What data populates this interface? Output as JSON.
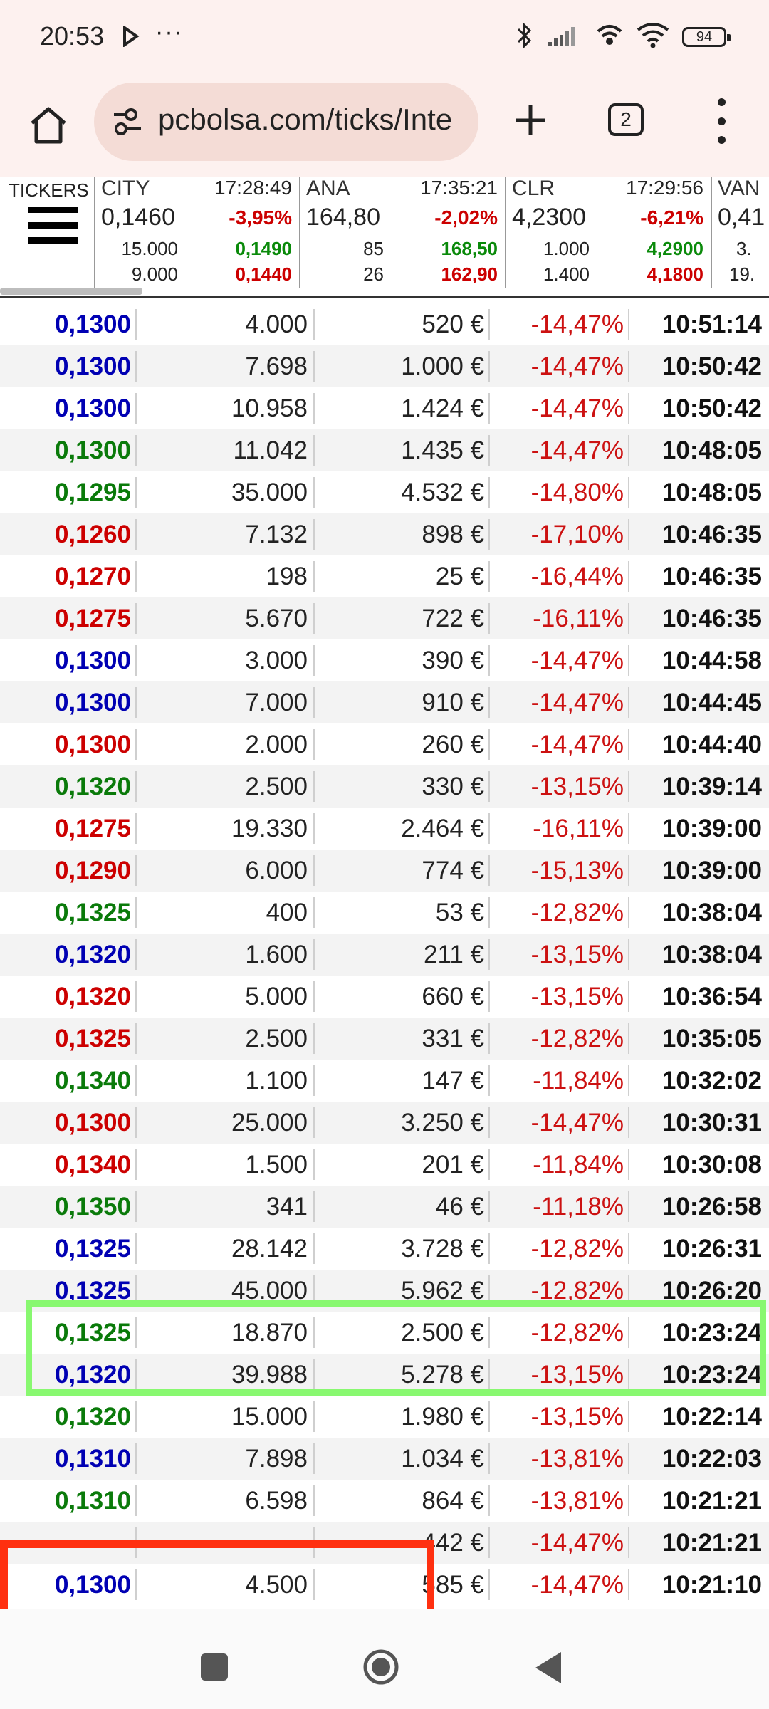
{
  "status_bar": {
    "time": "20:53",
    "more": "···",
    "battery": "94"
  },
  "browser": {
    "url": "pcbolsa.com/ticks/Inte",
    "tab_count": "2"
  },
  "tickers": {
    "menu_label": "TICKERS",
    "items": [
      {
        "symbol": "CITY",
        "time": "17:28:49",
        "price": "0,1460",
        "change": "-3,95%",
        "bid_vol": "15.000",
        "high": "0,1490",
        "ask_vol": "9.000",
        "low": "0,1440"
      },
      {
        "symbol": "ANA",
        "time": "17:35:21",
        "price": "164,80",
        "change": "-2,02%",
        "bid_vol": "85",
        "high": "168,50",
        "ask_vol": "26",
        "low": "162,90"
      },
      {
        "symbol": "CLR",
        "time": "17:29:56",
        "price": "4,2300",
        "change": "-6,21%",
        "bid_vol": "1.000",
        "high": "4,2900",
        "ask_vol": "1.400",
        "low": "4,1800"
      },
      {
        "symbol": "VAN",
        "time": "",
        "price": "0,41",
        "change": "",
        "bid_vol": "3.",
        "high": "",
        "ask_vol": "19.",
        "low": ""
      }
    ]
  },
  "trades": [
    {
      "price": "0,1300",
      "color": "blue",
      "shares": "4.000",
      "amount": "520 €",
      "pct": "-14,47%",
      "time": "10:51:14"
    },
    {
      "price": "0,1300",
      "color": "blue",
      "shares": "7.698",
      "amount": "1.000 €",
      "pct": "-14,47%",
      "time": "10:50:42"
    },
    {
      "price": "0,1300",
      "color": "blue",
      "shares": "10.958",
      "amount": "1.424 €",
      "pct": "-14,47%",
      "time": "10:50:42"
    },
    {
      "price": "0,1300",
      "color": "green",
      "shares": "11.042",
      "amount": "1.435 €",
      "pct": "-14,47%",
      "time": "10:48:05"
    },
    {
      "price": "0,1295",
      "color": "green",
      "shares": "35.000",
      "amount": "4.532 €",
      "pct": "-14,80%",
      "time": "10:48:05"
    },
    {
      "price": "0,1260",
      "color": "red",
      "shares": "7.132",
      "amount": "898 €",
      "pct": "-17,10%",
      "time": "10:46:35"
    },
    {
      "price": "0,1270",
      "color": "red",
      "shares": "198",
      "amount": "25 €",
      "pct": "-16,44%",
      "time": "10:46:35"
    },
    {
      "price": "0,1275",
      "color": "red",
      "shares": "5.670",
      "amount": "722 €",
      "pct": "-16,11%",
      "time": "10:46:35"
    },
    {
      "price": "0,1300",
      "color": "blue",
      "shares": "3.000",
      "amount": "390 €",
      "pct": "-14,47%",
      "time": "10:44:58"
    },
    {
      "price": "0,1300",
      "color": "blue",
      "shares": "7.000",
      "amount": "910 €",
      "pct": "-14,47%",
      "time": "10:44:45"
    },
    {
      "price": "0,1300",
      "color": "red",
      "shares": "2.000",
      "amount": "260 €",
      "pct": "-14,47%",
      "time": "10:44:40"
    },
    {
      "price": "0,1320",
      "color": "green",
      "shares": "2.500",
      "amount": "330 €",
      "pct": "-13,15%",
      "time": "10:39:14"
    },
    {
      "price": "0,1275",
      "color": "red",
      "shares": "19.330",
      "amount": "2.464 €",
      "pct": "-16,11%",
      "time": "10:39:00"
    },
    {
      "price": "0,1290",
      "color": "red",
      "shares": "6.000",
      "amount": "774 €",
      "pct": "-15,13%",
      "time": "10:39:00"
    },
    {
      "price": "0,1325",
      "color": "green",
      "shares": "400",
      "amount": "53 €",
      "pct": "-12,82%",
      "time": "10:38:04"
    },
    {
      "price": "0,1320",
      "color": "blue",
      "shares": "1.600",
      "amount": "211 €",
      "pct": "-13,15%",
      "time": "10:38:04"
    },
    {
      "price": "0,1320",
      "color": "red",
      "shares": "5.000",
      "amount": "660 €",
      "pct": "-13,15%",
      "time": "10:36:54"
    },
    {
      "price": "0,1325",
      "color": "red",
      "shares": "2.500",
      "amount": "331 €",
      "pct": "-12,82%",
      "time": "10:35:05"
    },
    {
      "price": "0,1340",
      "color": "green",
      "shares": "1.100",
      "amount": "147 €",
      "pct": "-11,84%",
      "time": "10:32:02"
    },
    {
      "price": "0,1300",
      "color": "red",
      "shares": "25.000",
      "amount": "3.250 €",
      "pct": "-14,47%",
      "time": "10:30:31"
    },
    {
      "price": "0,1340",
      "color": "red",
      "shares": "1.500",
      "amount": "201 €",
      "pct": "-11,84%",
      "time": "10:30:08"
    },
    {
      "price": "0,1350",
      "color": "green",
      "shares": "341",
      "amount": "46 €",
      "pct": "-11,18%",
      "time": "10:26:58"
    },
    {
      "price": "0,1325",
      "color": "blue",
      "shares": "28.142",
      "amount": "3.728 €",
      "pct": "-12,82%",
      "time": "10:26:31"
    },
    {
      "price": "0,1325",
      "color": "blue",
      "shares": "45.000",
      "amount": "5.962 €",
      "pct": "-12,82%",
      "time": "10:26:20"
    },
    {
      "price": "0,1325",
      "color": "green",
      "shares": "18.870",
      "amount": "2.500 €",
      "pct": "-12,82%",
      "time": "10:23:24"
    },
    {
      "price": "0,1320",
      "color": "blue",
      "shares": "39.988",
      "amount": "5.278 €",
      "pct": "-13,15%",
      "time": "10:23:24"
    },
    {
      "price": "0,1320",
      "color": "green",
      "shares": "15.000",
      "amount": "1.980 €",
      "pct": "-13,15%",
      "time": "10:22:14"
    },
    {
      "price": "0,1310",
      "color": "blue",
      "shares": "7.898",
      "amount": "1.034 €",
      "pct": "-13,81%",
      "time": "10:22:03"
    },
    {
      "price": "0,1310",
      "color": "green",
      "shares": "6.598",
      "amount": "864 €",
      "pct": "-13,81%",
      "time": "10:21:21"
    },
    {
      "price": "",
      "color": "green",
      "shares": "",
      "amount": "442 €",
      "pct": "-14,47%",
      "time": "10:21:21"
    },
    {
      "price": "0,1300",
      "color": "blue",
      "shares": "4.500",
      "amount": "585 €",
      "pct": "-14,47%",
      "time": "10:21:10"
    }
  ]
}
